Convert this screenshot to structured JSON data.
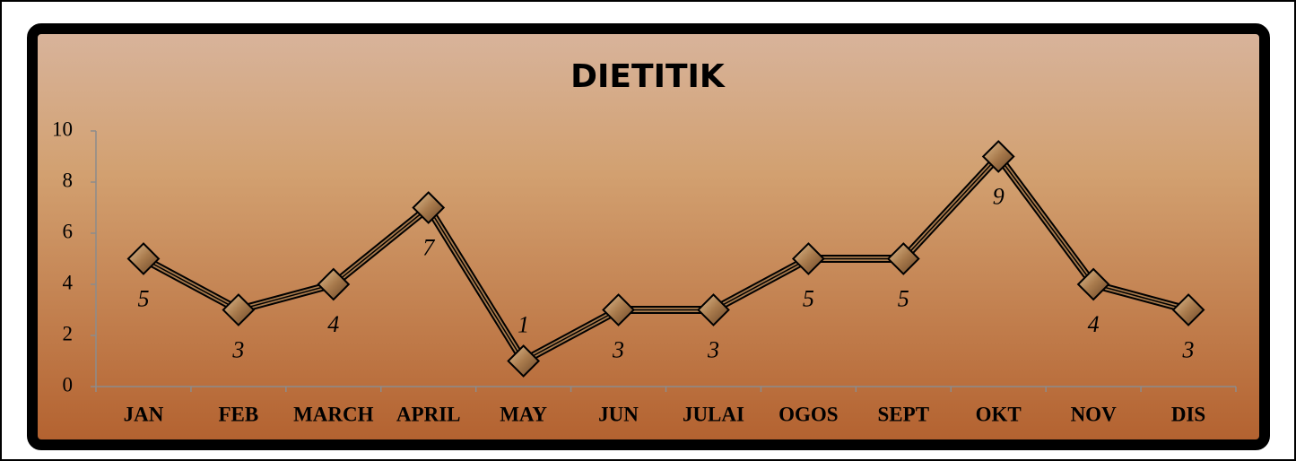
{
  "chart_data": {
    "type": "line",
    "title": "DIETITIK",
    "categories": [
      "JAN",
      "FEB",
      "MARCH",
      "APRIL",
      "MAY",
      "JUN",
      "JULAI",
      "OGOS",
      "SEPT",
      "OKT",
      "NOV",
      "DIS"
    ],
    "values": [
      5,
      3,
      4,
      7,
      1,
      3,
      3,
      5,
      5,
      9,
      4,
      3
    ],
    "color": "#000000",
    "marker_color": "#a87a4c",
    "ylim": [
      0,
      10
    ],
    "yticks": [
      0,
      2,
      4,
      6,
      8,
      10
    ],
    "grid": false
  }
}
